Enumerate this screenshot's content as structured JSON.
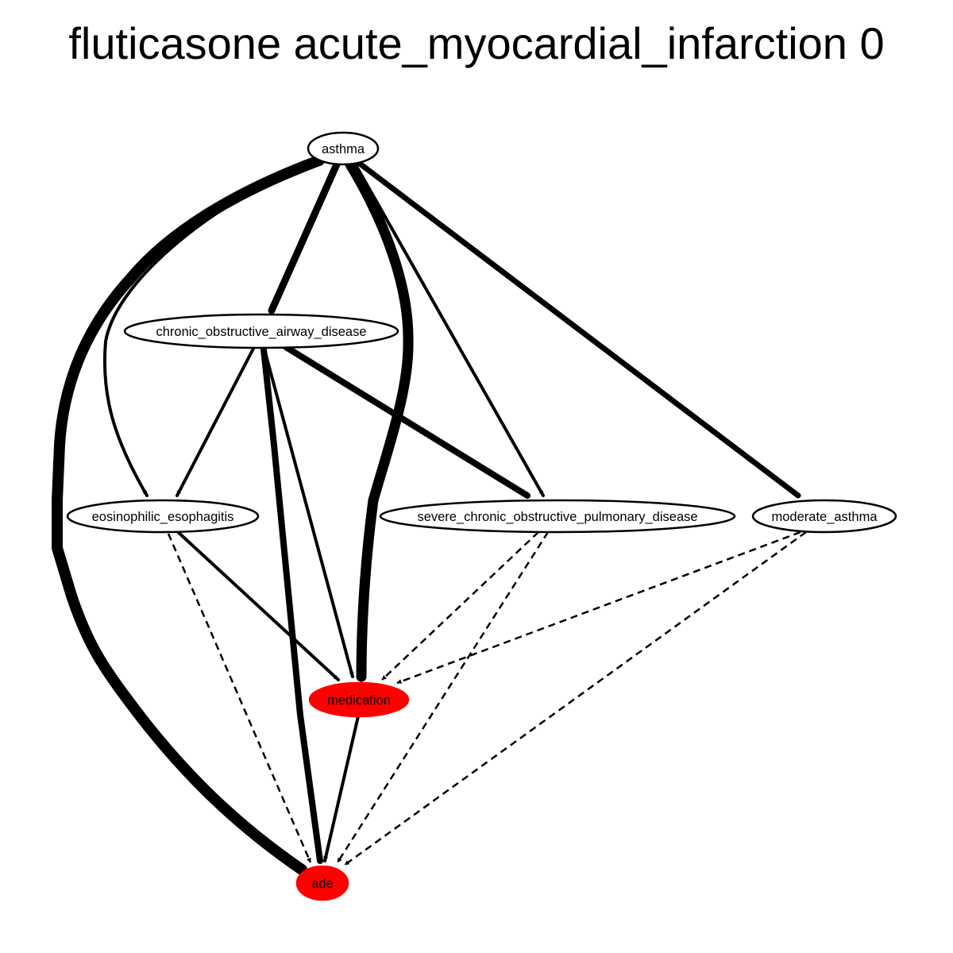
{
  "title": "fluticasone acute_myocardial_infarction 0",
  "colors": {
    "highlight_fill": "#ff0000",
    "default_fill": "#ffffff",
    "stroke": "#000000"
  },
  "nodes": [
    {
      "id": "asthma",
      "label": "asthma",
      "highlight": false
    },
    {
      "id": "coad",
      "label": "chronic_obstructive_airway_disease",
      "highlight": false
    },
    {
      "id": "eos",
      "label": "eosinophilic_esophagitis",
      "highlight": false
    },
    {
      "id": "scopd",
      "label": "severe_chronic_obstructive_pulmonary_disease",
      "highlight": false
    },
    {
      "id": "mod",
      "label": "moderate_asthma",
      "highlight": false
    },
    {
      "id": "med",
      "label": "medication",
      "highlight": true
    },
    {
      "id": "ade",
      "label": "ade",
      "highlight": true
    }
  ],
  "edges": [
    {
      "from": "asthma",
      "to": "ade",
      "style": "solid",
      "weight": 14
    },
    {
      "from": "asthma",
      "to": "coad",
      "style": "solid",
      "weight": 9
    },
    {
      "from": "asthma",
      "to": "eos",
      "style": "solid",
      "weight": 4
    },
    {
      "from": "asthma",
      "to": "med",
      "style": "solid",
      "weight": 13
    },
    {
      "from": "asthma",
      "to": "scopd",
      "style": "solid",
      "weight": 4
    },
    {
      "from": "asthma",
      "to": "mod",
      "style": "solid",
      "weight": 7
    },
    {
      "from": "coad",
      "to": "eos",
      "style": "solid",
      "weight": 4
    },
    {
      "from": "coad",
      "to": "ade",
      "style": "solid",
      "weight": 8
    },
    {
      "from": "coad",
      "to": "med",
      "style": "solid",
      "weight": 4
    },
    {
      "from": "coad",
      "to": "scopd",
      "style": "solid",
      "weight": 8
    },
    {
      "from": "eos",
      "to": "med",
      "style": "solid",
      "weight": 4
    },
    {
      "from": "eos",
      "to": "ade",
      "style": "dashed",
      "weight": 2
    },
    {
      "from": "scopd",
      "to": "med",
      "style": "dashed",
      "weight": 2
    },
    {
      "from": "scopd",
      "to": "ade",
      "style": "dashed",
      "weight": 2
    },
    {
      "from": "mod",
      "to": "med",
      "style": "dashed",
      "weight": 2
    },
    {
      "from": "mod",
      "to": "ade",
      "style": "dashed",
      "weight": 2
    },
    {
      "from": "med",
      "to": "ade",
      "style": "solid",
      "weight": 4
    }
  ]
}
